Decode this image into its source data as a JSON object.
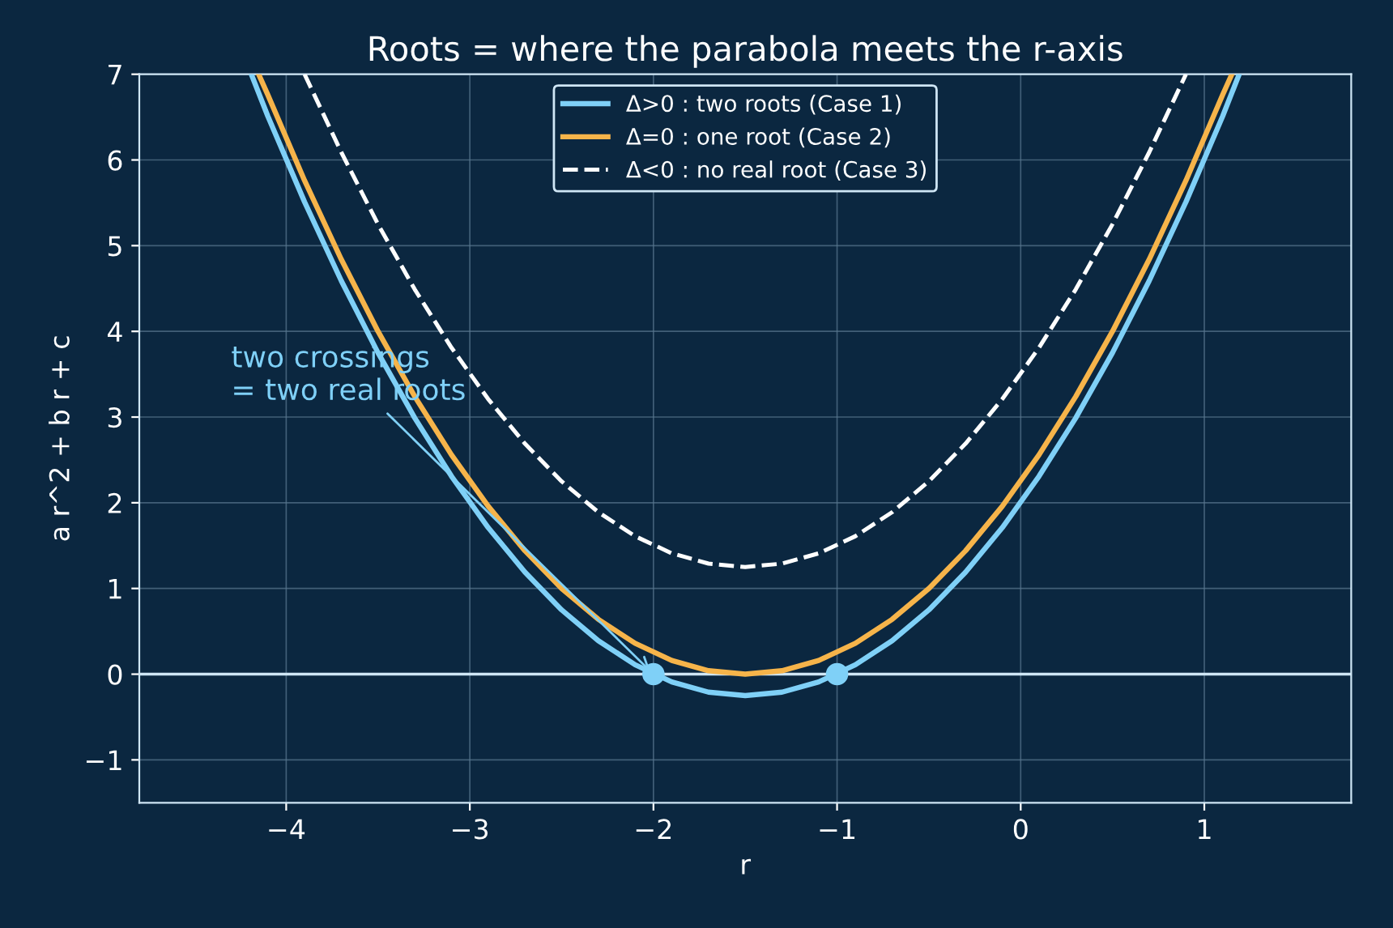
{
  "chart_data": {
    "type": "line",
    "title": "Roots = where the parabola meets the r-axis",
    "xlabel": "r",
    "ylabel": "a r^2 + b r + c",
    "xlim": [
      -4.8,
      1.8
    ],
    "xticks": [
      -4,
      -3,
      -2,
      -1,
      0,
      1
    ],
    "ylim": [
      -1.5,
      7
    ],
    "yticks": [
      -1,
      0,
      1,
      2,
      3,
      4,
      5,
      6,
      7
    ],
    "grid": true,
    "legend": "top",
    "series": [
      {
        "name": "Δ>0 : two roots (Case 1)",
        "color": "#7fd0f7",
        "line_style": "solid",
        "x": [
          -4.19,
          -4.1,
          -3.9,
          -3.7,
          -3.5,
          -3.3,
          -3.1,
          -2.9,
          -2.7,
          -2.5,
          -2.3,
          -2.1,
          -1.9,
          -1.7,
          -1.5,
          -1.3,
          -1.1,
          -0.9,
          -0.7,
          -0.5,
          -0.3,
          -0.1,
          0.1,
          0.3,
          0.5,
          0.7,
          0.9,
          1.1,
          1.19
        ],
        "values": [
          7.0,
          6.51,
          5.51,
          4.59,
          3.75,
          2.99,
          2.31,
          1.71,
          1.19,
          0.75,
          0.39,
          0.11,
          -0.09,
          -0.21,
          -0.25,
          -0.21,
          -0.09,
          0.11,
          0.39,
          0.75,
          1.19,
          1.71,
          2.31,
          2.99,
          3.75,
          4.59,
          5.51,
          6.51,
          7.0
        ]
      },
      {
        "name": "Δ=0 : one root (Case 2)",
        "color": "#f6b44a",
        "line_style": "solid",
        "x": [
          -4.15,
          -4.1,
          -3.9,
          -3.7,
          -3.5,
          -3.3,
          -3.1,
          -2.9,
          -2.7,
          -2.5,
          -2.3,
          -2.1,
          -1.9,
          -1.7,
          -1.5,
          -1.3,
          -1.1,
          -0.9,
          -0.7,
          -0.5,
          -0.3,
          -0.1,
          0.1,
          0.3,
          0.5,
          0.7,
          0.9,
          1.1,
          1.15
        ],
        "values": [
          7.0,
          6.76,
          5.76,
          4.84,
          4.0,
          3.24,
          2.56,
          1.96,
          1.44,
          1.0,
          0.64,
          0.36,
          0.16,
          0.04,
          0.0,
          0.04,
          0.16,
          0.36,
          0.64,
          1.0,
          1.44,
          1.96,
          2.56,
          3.24,
          4.0,
          4.84,
          5.76,
          6.76,
          7.0
        ]
      },
      {
        "name": "Δ<0 : no real root (Case 3)",
        "color": "#ffffff",
        "line_style": "dashed",
        "x": [
          -3.9,
          -3.7,
          -3.5,
          -3.3,
          -3.1,
          -2.9,
          -2.7,
          -2.5,
          -2.3,
          -2.1,
          -1.9,
          -1.7,
          -1.5,
          -1.3,
          -1.1,
          -0.9,
          -0.7,
          -0.5,
          -0.3,
          -0.1,
          0.1,
          0.3,
          0.5,
          0.7,
          0.9
        ],
        "values": [
          7.0,
          6.09,
          5.25,
          4.49,
          3.81,
          3.21,
          2.69,
          2.25,
          1.89,
          1.61,
          1.41,
          1.29,
          1.25,
          1.29,
          1.41,
          1.61,
          1.89,
          2.25,
          2.69,
          3.21,
          3.81,
          4.49,
          5.25,
          6.09,
          7.0
        ]
      },
      {
        "type": "scatter",
        "color": "#7fd0f7",
        "marker": "circle",
        "x": [
          -2,
          -1
        ],
        "values": [
          0,
          0
        ]
      }
    ],
    "ref_lines": [
      {
        "axis": "y",
        "value": 0,
        "color": "#cfe6f5"
      }
    ],
    "annotations": [
      {
        "text": "two crossings\n= two real roots",
        "x": -2,
        "y": 0
      }
    ]
  }
}
